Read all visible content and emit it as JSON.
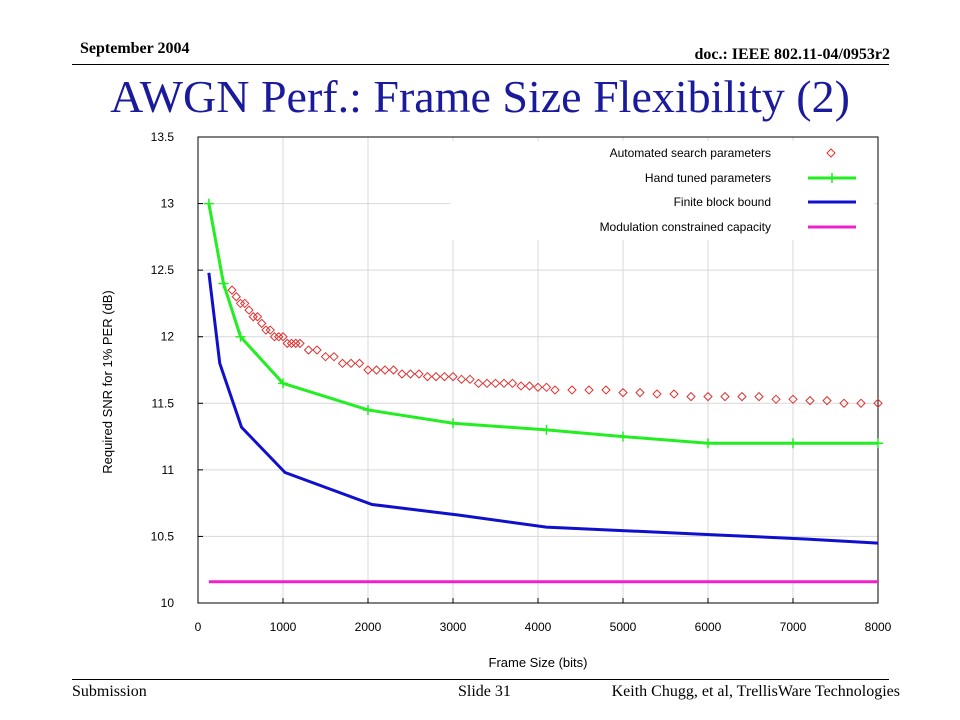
{
  "header": {
    "date": "September 2004",
    "doc": "doc.: IEEE 802.11-04/0953r2"
  },
  "slide": {
    "title": "AWGN Perf.: Frame Size Flexibility (2)"
  },
  "footer": {
    "left": "Submission",
    "center": "Slide 31",
    "right": "Keith Chugg, et al, TrellisWare  Technologies"
  },
  "colors": {
    "title": "#1a1a9c",
    "automated": "#e03030",
    "hand": "#22ee22",
    "bound": "#1010cc",
    "capacity": "#ee22cc"
  },
  "chart_data": {
    "type": "line",
    "xlabel": "Frame Size (bits)",
    "ylabel": "Required SNR for 1% PER (dB)",
    "xlim": [
      0,
      8000
    ],
    "ylim": [
      10,
      13.5
    ],
    "xticks": [
      "0",
      "1000",
      "2000",
      "3000",
      "4000",
      "5000",
      "6000",
      "7000",
      "8000"
    ],
    "yticks": [
      "10",
      "10.5",
      "11",
      "11.5",
      "12",
      "12.5",
      "13",
      "13.5"
    ],
    "grid": true,
    "legend_position": "top-right",
    "series": [
      {
        "name": "Automated search parameters",
        "marker": "diamond",
        "color": "#e03030",
        "x": [
          400,
          450,
          500,
          550,
          600,
          650,
          700,
          750,
          800,
          850,
          900,
          950,
          1000,
          1050,
          1100,
          1150,
          1200,
          1300,
          1400,
          1500,
          1600,
          1700,
          1800,
          1900,
          2000,
          2100,
          2200,
          2300,
          2400,
          2500,
          2600,
          2700,
          2800,
          2900,
          3000,
          3100,
          3200,
          3300,
          3400,
          3500,
          3600,
          3700,
          3800,
          3900,
          4000,
          4100,
          4200,
          4400,
          4600,
          4800,
          5000,
          5200,
          5400,
          5600,
          5800,
          6000,
          6200,
          6400,
          6600,
          6800,
          7000,
          7200,
          7400,
          7600,
          7800,
          8000
        ],
        "y": [
          12.35,
          12.3,
          12.25,
          12.25,
          12.2,
          12.15,
          12.15,
          12.1,
          12.05,
          12.05,
          12.0,
          12.0,
          12.0,
          11.95,
          11.95,
          11.95,
          11.95,
          11.9,
          11.9,
          11.85,
          11.85,
          11.8,
          11.8,
          11.8,
          11.75,
          11.75,
          11.75,
          11.75,
          11.72,
          11.72,
          11.72,
          11.7,
          11.7,
          11.7,
          11.7,
          11.68,
          11.68,
          11.65,
          11.65,
          11.65,
          11.65,
          11.65,
          11.63,
          11.63,
          11.62,
          11.62,
          11.6,
          11.6,
          11.6,
          11.6,
          11.58,
          11.58,
          11.57,
          11.57,
          11.55,
          11.55,
          11.55,
          11.55,
          11.55,
          11.53,
          11.53,
          11.52,
          11.52,
          11.5,
          11.5,
          11.5
        ]
      },
      {
        "name": "Hand tuned parameters",
        "marker": "plus",
        "color": "#22ee22",
        "x": [
          128,
          300,
          500,
          1000,
          2000,
          3000,
          4100,
          5000,
          6000,
          7000,
          8000
        ],
        "y": [
          13.0,
          12.4,
          12.0,
          11.65,
          11.45,
          11.35,
          11.3,
          11.25,
          11.2,
          11.2,
          11.2
        ]
      },
      {
        "name": "Finite block bound",
        "marker": "none",
        "color": "#1010cc",
        "x": [
          128,
          256,
          512,
          1024,
          2048,
          3072,
          4096,
          5120,
          6144,
          7168,
          8000
        ],
        "y": [
          12.48,
          11.8,
          11.32,
          10.98,
          10.74,
          10.66,
          10.57,
          10.54,
          10.51,
          10.48,
          10.45
        ]
      },
      {
        "name": "Modulation constrained capacity",
        "marker": "none",
        "color": "#ee22cc",
        "x": [
          128,
          8000
        ],
        "y": [
          10.16,
          10.16
        ]
      }
    ]
  }
}
